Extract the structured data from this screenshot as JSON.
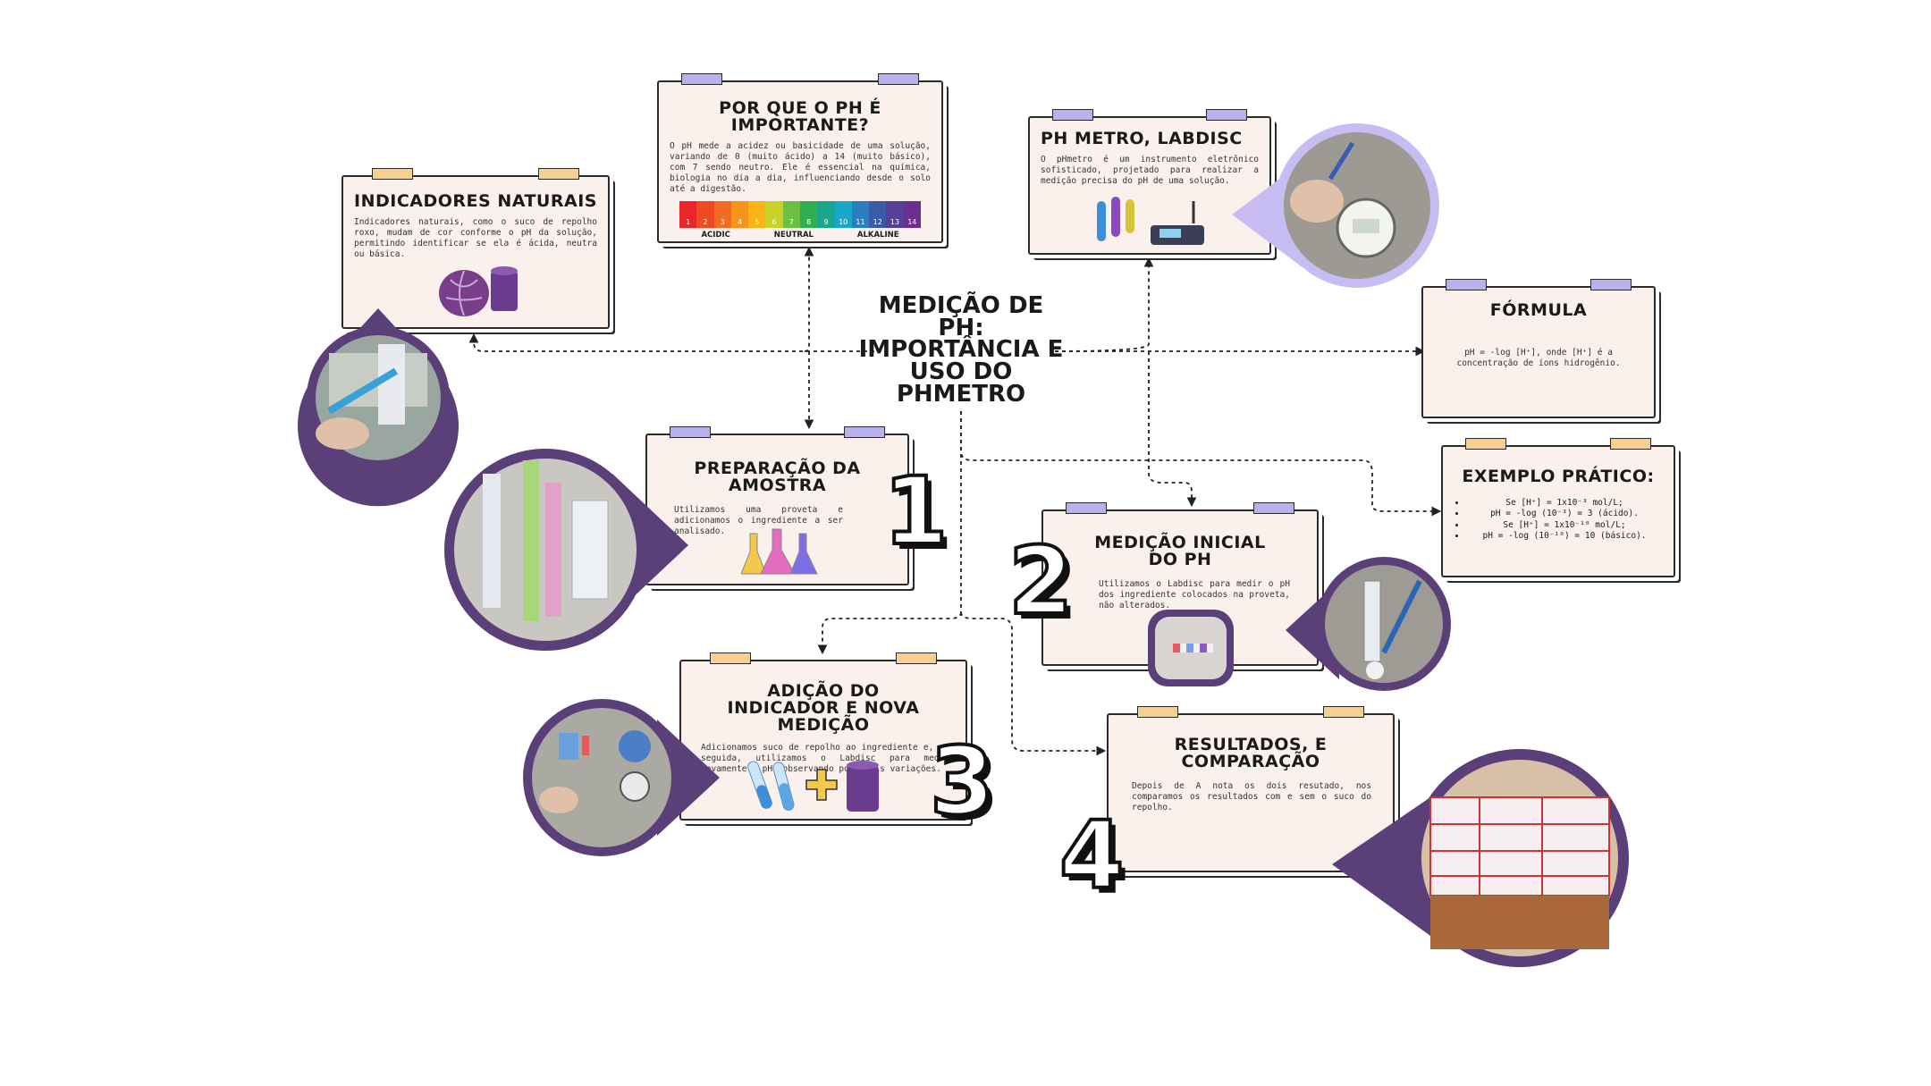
{
  "center_title": "MEDIÇÃO DE PH: IMPORTÂNCIA E USO DO PHMETRO",
  "cards": {
    "indicadores": {
      "title": "INDICADORES NATURAIS",
      "text": "Indicadores naturais, como o suco de repolho roxo, mudam de cor conforme o pH da solução, permitindo identificar se ela é ácida, neutra ou básica."
    },
    "importante": {
      "title": "POR QUE O PH É IMPORTANTE?",
      "text": "O pH mede a acidez ou basicidade de uma solução, variando de 0 (muito ácido) a 14 (muito básico), com 7 sendo neutro. Ele é essencial na química, biologia no dia a dia, influenciando desde o solo até a digestão.",
      "scale_numbers": [
        "1",
        "2",
        "3",
        "4",
        "5",
        "6",
        "7",
        "8",
        "9",
        "10",
        "11",
        "12",
        "13",
        "14"
      ],
      "scale_colors": [
        "#e8262b",
        "#ee4a25",
        "#f26b21",
        "#f7941d",
        "#fbb416",
        "#c8d22b",
        "#6cbf45",
        "#2fae4f",
        "#18a68d",
        "#1aa7c8",
        "#2a7ec0",
        "#3b5ba8",
        "#553f98",
        "#6b2d8e"
      ],
      "legend": [
        "ACIDIC",
        "NEUTRAL",
        "ALKALINE"
      ]
    },
    "phmetro": {
      "title": "PH METRO,  LABDISC",
      "text": "O pHmetro é um instrumento eletrônico sofisticado, projetado para realizar a medição precisa do pH de uma solução."
    },
    "formula": {
      "title": "FÓRMULA",
      "text": "pH = -log [H⁺], onde [H⁺] é a concentração de íons hidrogênio."
    },
    "exemplo": {
      "title": "EXEMPLO PRÁTICO:",
      "lines": [
        "Se [H⁺] = 1x10⁻³ mol/L;",
        "pH = -log (10⁻³) = 3 (ácido).",
        "Se [H⁺] = 1x10⁻¹⁰ mol/L;",
        "pH = -log (10⁻¹⁰) = 10 (básico)."
      ]
    },
    "preparacao": {
      "title": "PREPARAÇÃO DA AMOSTRA",
      "text": "Utilizamos uma proveta e adicionamos o ingrediente a ser analisado."
    },
    "medicao_inicial": {
      "title": "MEDIÇÃO INICIAL DO PH",
      "text": "Utilizamos o Labdisc para medir o pH dos ingrediente colocados na proveta, não alterados."
    },
    "adicao": {
      "title": "ADIÇÃO DO INDICADOR E NOVA MEDIÇÃO",
      "text": "Adicionamos suco de repolho ao ingrediente e, em seguida, utilizamos o Labdisc para medir novamente o pH, observando possíveis variações."
    },
    "resultados": {
      "title": "RESULTADOS, E COMPARAÇÃO",
      "text": "Depois de A nota os dois resutado, nos comparamos os resultados com e sem o suco do repolho."
    }
  },
  "steps": [
    "1",
    "2",
    "3",
    "4"
  ],
  "colors": {
    "card_bg": "#fbf1ec",
    "accent_purple": "#5b3f78",
    "light_purple": "#c8bdf2",
    "tape_purple": "#b9b0ee",
    "tape_orange": "#f7cf93"
  }
}
